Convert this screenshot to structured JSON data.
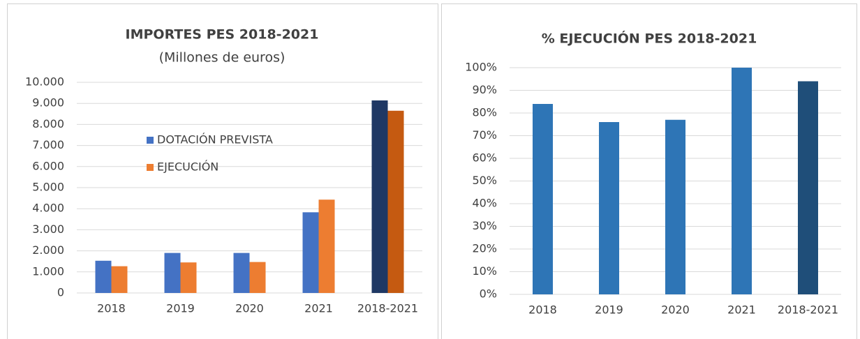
{
  "chart_data": [
    {
      "type": "bar",
      "title": "IMPORTES PES 2018-2021",
      "subtitle": "(Millones de euros)",
      "categories": [
        "2018",
        "2019",
        "2020",
        "2021",
        "2018-2021"
      ],
      "series": [
        {
          "name": "DOTACIÓN PREVISTA",
          "colors": [
            "#4472c4",
            "#4472c4",
            "#4472c4",
            "#4472c4",
            "#1f3864"
          ],
          "values": [
            1530,
            1900,
            1900,
            3830,
            9140
          ]
        },
        {
          "name": "EJECUCIÓN",
          "colors": [
            "#ed7d31",
            "#ed7d31",
            "#ed7d31",
            "#ed7d31",
            "#c55a11"
          ],
          "values": [
            1270,
            1450,
            1470,
            4430,
            8650
          ]
        }
      ],
      "ylim": [
        0,
        10000
      ],
      "yticks": [
        0,
        {
          "value": 1000,
          "label": "1.000"
        },
        {
          "value": 2000,
          "label": "2.000"
        },
        {
          "value": 3000,
          "label": "3.000"
        },
        {
          "value": 4000,
          "label": "4.000"
        },
        {
          "value": 5000,
          "label": "5.000"
        },
        {
          "value": 6000,
          "label": "6.000"
        },
        {
          "value": 7000,
          "label": "7.000"
        },
        {
          "value": 8000,
          "label": "8.000"
        },
        {
          "value": 9000,
          "label": "9.000"
        },
        {
          "value": 10000,
          "label": "10.000"
        }
      ],
      "grid": true
    },
    {
      "type": "bar",
      "title": "% EJECUCIÓN PES 2018-2021",
      "categories": [
        "2018",
        "2019",
        "2020",
        "2021",
        "2018-2021"
      ],
      "values": [
        84,
        76,
        77,
        100,
        94
      ],
      "colors": [
        "#2e75b6",
        "#2e75b6",
        "#2e75b6",
        "#2e75b6",
        "#1f4e79"
      ],
      "ylim": [
        0,
        100
      ],
      "yticks": [
        {
          "value": 0,
          "label": "0%"
        },
        {
          "value": 10,
          "label": "10%"
        },
        {
          "value": 20,
          "label": "20%"
        },
        {
          "value": 30,
          "label": "30%"
        },
        {
          "value": 40,
          "label": "40%"
        },
        {
          "value": 50,
          "label": "50%"
        },
        {
          "value": 60,
          "label": "60%"
        },
        {
          "value": 70,
          "label": "70%"
        },
        {
          "value": 80,
          "label": "80%"
        },
        {
          "value": 90,
          "label": "90%"
        },
        {
          "value": 100,
          "label": "100%"
        }
      ],
      "grid": true
    }
  ]
}
